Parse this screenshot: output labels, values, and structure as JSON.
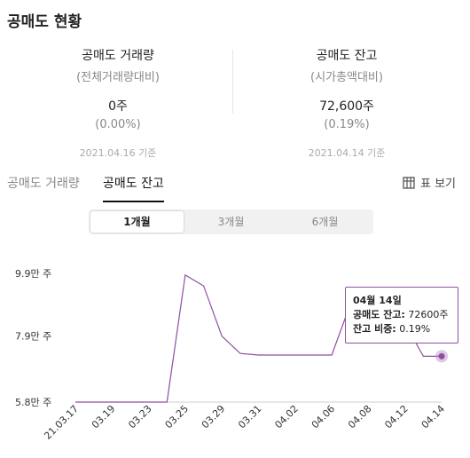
{
  "title": "공매도 현황",
  "stats": [
    {
      "label": "공매도 거래량",
      "sub": "(전체거래량대비)",
      "value": "0주",
      "pct": "(0.00%)",
      "date": "2021.04.16 기준"
    },
    {
      "label": "공매도 잔고",
      "sub": "(시가총액대비)",
      "value": "72,600주",
      "pct": "(0.19%)",
      "date": "2021.04.14 기준"
    }
  ],
  "tabs": [
    {
      "label": "공매도 거래량",
      "active": false
    },
    {
      "label": "공매도 잔고",
      "active": true
    }
  ],
  "table_view_label": "표 보기",
  "periods": [
    {
      "label": "1개월",
      "selected": true
    },
    {
      "label": "3개월",
      "selected": false
    },
    {
      "label": "6개월",
      "selected": false
    }
  ],
  "tooltip": {
    "date": "04월 14일",
    "balance_label": "공매도 잔고:",
    "balance_value": "72600주",
    "ratio_label": "잔고 비중:",
    "ratio_value": "0.19%"
  },
  "colors": {
    "line": "#8e4fa0",
    "point": "#b48ac4"
  },
  "chart_data": {
    "type": "line",
    "title": "",
    "xlabel": "",
    "ylabel": "",
    "x": [
      "21.03.17",
      "03.18",
      "03.19",
      "03.22",
      "03.23",
      "03.24",
      "03.25",
      "03.26",
      "03.29",
      "03.30",
      "03.31",
      "04.01",
      "04.02",
      "04.05",
      "04.06",
      "04.07",
      "04.08",
      "04.09",
      "04.12",
      "04.13",
      "04.14"
    ],
    "x_tick_labels": [
      "21.03.17",
      "03.19",
      "03.23",
      "03.25",
      "03.29",
      "03.31",
      "04.02",
      "04.06",
      "04.08",
      "04.12",
      "04.14"
    ],
    "y_tick_labels": [
      "9.9만 주",
      "7.9만 주",
      "5.8만 주"
    ],
    "y_ticks": [
      99000,
      79000,
      58000
    ],
    "ylim": [
      58000,
      99000
    ],
    "series": [
      {
        "values": [
          58000,
          58000,
          58000,
          58000,
          58000,
          58000,
          98500,
          95000,
          79000,
          73500,
          73000,
          73000,
          73000,
          73000,
          73000,
          89000,
          86000,
          84000,
          83000,
          72600,
          72600
        ]
      }
    ],
    "highlight": {
      "x": "04.14",
      "y": 72600
    },
    "grid": false,
    "legend": "none"
  }
}
